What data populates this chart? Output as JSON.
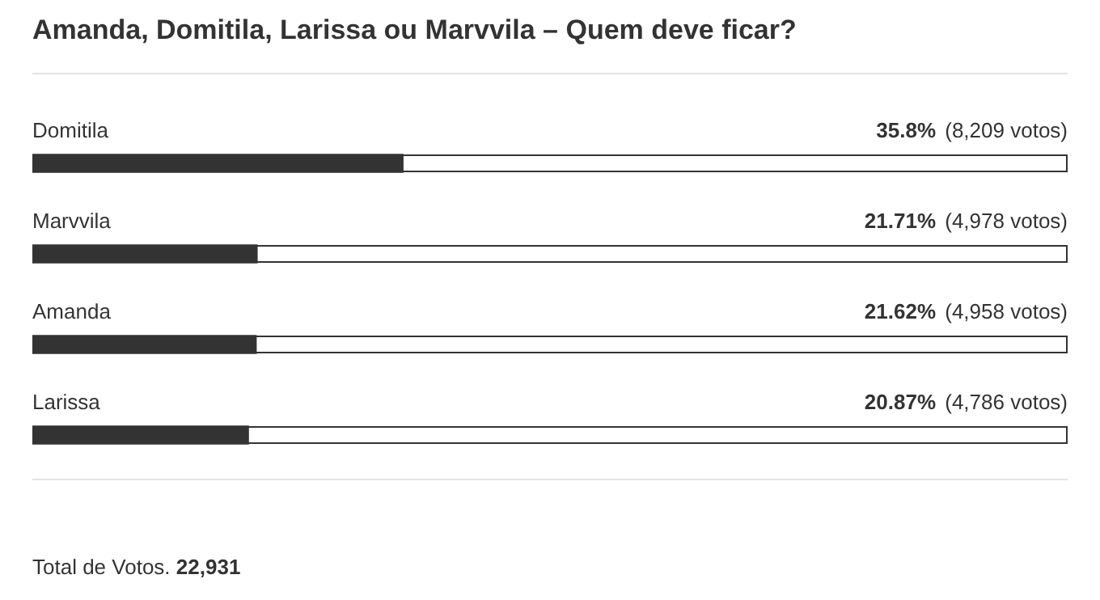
{
  "chart_data": {
    "type": "bar",
    "orientation": "horizontal",
    "title": "Amanda, Domitila, Larissa ou Marvvila – Quem deve ficar?",
    "categories": [
      "Domitila",
      "Marvvila",
      "Amanda",
      "Larissa"
    ],
    "values": [
      35.8,
      21.71,
      21.62,
      20.87
    ],
    "value_labels": [
      "35.8% (8,209 votos)",
      "21.71% (4,978 votos)",
      "21.62% (4,958 votos)",
      "20.87% (4,786 votos)"
    ],
    "color": "#333333",
    "xlim": [
      0,
      100
    ],
    "tick_labels": "y",
    "legend": false,
    "annotations": [
      "Total de Votos. 22,931"
    ]
  }
}
